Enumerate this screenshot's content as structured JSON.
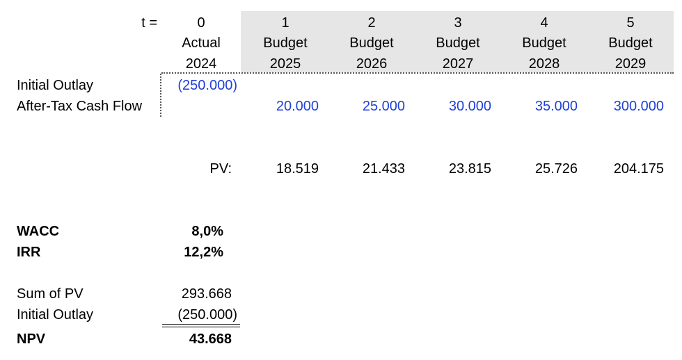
{
  "header": {
    "t_label": "t =",
    "periods": [
      "0",
      "1",
      "2",
      "3",
      "4",
      "5"
    ],
    "types": [
      "Actual",
      "Budget",
      "Budget",
      "Budget",
      "Budget",
      "Budget"
    ],
    "years": [
      "2024",
      "2025",
      "2026",
      "2027",
      "2028",
      "2029"
    ]
  },
  "rows": {
    "initial_outlay_label": "Initial Outlay",
    "initial_outlay_value": "(250.000)",
    "cash_flow_label": "After-Tax Cash Flow",
    "cash_flows": [
      "20.000",
      "25.000",
      "30.000",
      "35.000",
      "300.000"
    ],
    "pv_label": "PV:",
    "pv_values": [
      "18.519",
      "21.433",
      "23.815",
      "25.726",
      "204.175"
    ]
  },
  "summary": {
    "wacc_label": "WACC",
    "wacc_value": "8,0%",
    "irr_label": "IRR",
    "irr_value": "12,2%",
    "sum_pv_label": "Sum of PV",
    "sum_pv_value": "293.668",
    "initial_outlay_label": "Initial Outlay",
    "initial_outlay_value": "(250.000)",
    "npv_label": "NPV",
    "npv_value": "43.668"
  },
  "colors": {
    "input_blue": "#1f3fd6",
    "header_shade": "#e6e6e6"
  }
}
